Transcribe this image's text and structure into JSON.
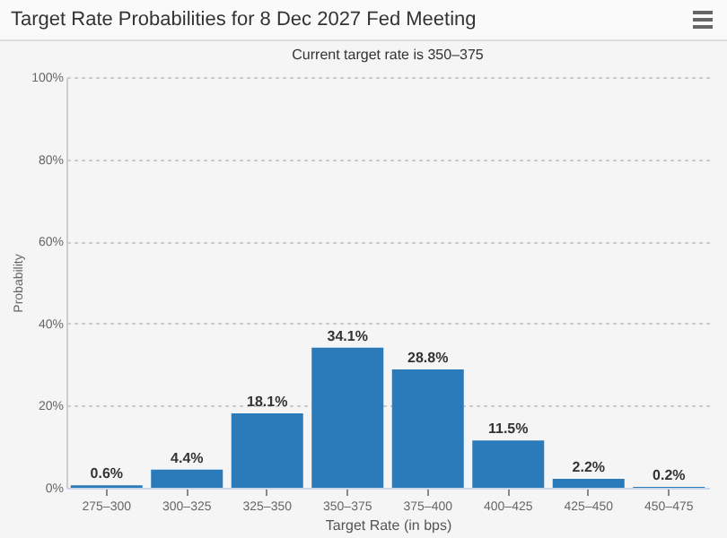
{
  "chart_data": {
    "type": "bar",
    "title": "Target Rate Probabilities for 8 Dec 2027 Fed Meeting",
    "subtitle": "Current target rate is 350–375",
    "xlabel": "Target Rate (in bps)",
    "ylabel": "Probability",
    "categories": [
      "275–300",
      "300–325",
      "325–350",
      "350–375",
      "375–400",
      "400–425",
      "425–450",
      "450–475"
    ],
    "values": [
      0.6,
      4.4,
      18.1,
      34.1,
      28.8,
      11.5,
      2.2,
      0.2
    ],
    "value_labels": [
      "0.6%",
      "4.4%",
      "18.1%",
      "34.1%",
      "28.8%",
      "11.5%",
      "2.2%",
      "0.2%"
    ],
    "color": "#2b7bba",
    "ylim": [
      0,
      100
    ],
    "yticks": [
      {
        "value": 0,
        "label": "0%"
      },
      {
        "value": 20,
        "label": "20%"
      },
      {
        "value": 40,
        "label": "40%"
      },
      {
        "value": 60,
        "label": "60%"
      },
      {
        "value": 80,
        "label": "80%"
      },
      {
        "value": 100,
        "label": "100%"
      }
    ],
    "grid": "y"
  }
}
